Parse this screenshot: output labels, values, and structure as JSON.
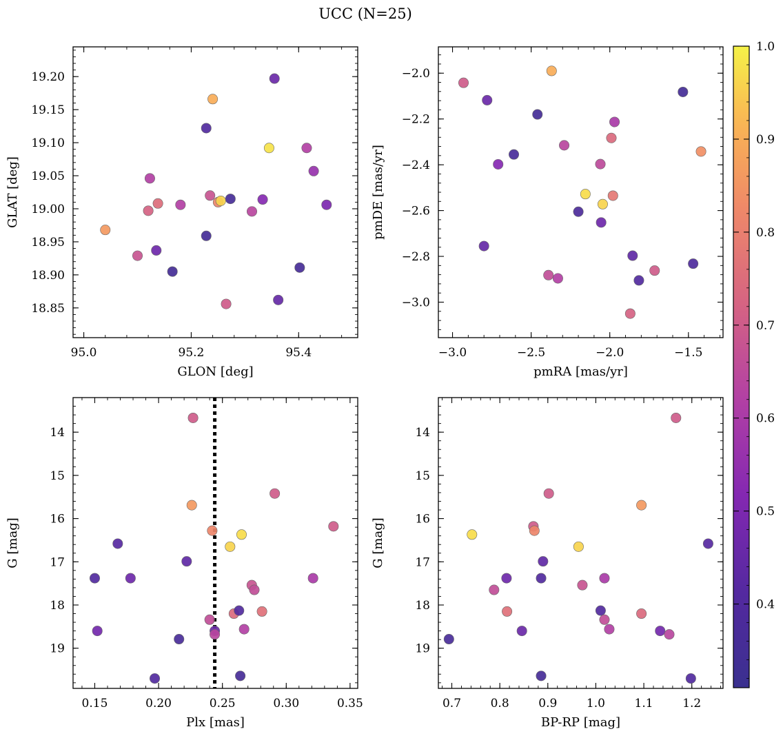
{
  "figure": {
    "title": "UCC (N=25)"
  },
  "colorbar": {
    "min": 0.31,
    "max": 1.0,
    "ticks": [
      0.4,
      0.5,
      0.6,
      0.7,
      0.8,
      0.9,
      1.0
    ],
    "tick_labels": [
      "0.4",
      "0.5",
      "0.6",
      "0.7",
      "0.8",
      "0.9",
      "1.0"
    ],
    "colormap": "plasma"
  },
  "chart_data": [
    {
      "type": "scatter",
      "xlabel": "GLON [deg]",
      "ylabel": "GLAT [deg]",
      "xlim": [
        94.98,
        95.51
      ],
      "ylim": [
        18.805,
        19.245
      ],
      "y_inverted": false,
      "xticks": [
        95.0,
        95.2,
        95.4
      ],
      "xtick_labels": [
        "95.0",
        "95.2",
        "95.4"
      ],
      "yticks": [
        18.85,
        18.9,
        18.95,
        19.0,
        19.05,
        19.1,
        19.15,
        19.2
      ],
      "ytick_labels": [
        "18.85",
        "18.90",
        "18.95",
        "19.00",
        "19.05",
        "19.10",
        "19.15",
        "19.20"
      ],
      "points": [
        {
          "x": 95.04,
          "y": 18.968,
          "c": 0.86
        },
        {
          "x": 95.1,
          "y": 18.929,
          "c": 0.68
        },
        {
          "x": 95.12,
          "y": 18.997,
          "c": 0.72
        },
        {
          "x": 95.123,
          "y": 19.046,
          "c": 0.62
        },
        {
          "x": 95.135,
          "y": 18.937,
          "c": 0.47
        },
        {
          "x": 95.138,
          "y": 19.008,
          "c": 0.75
        },
        {
          "x": 95.165,
          "y": 18.905,
          "c": 0.35
        },
        {
          "x": 95.18,
          "y": 19.006,
          "c": 0.62
        },
        {
          "x": 95.228,
          "y": 19.122,
          "c": 0.4
        },
        {
          "x": 95.228,
          "y": 18.959,
          "c": 0.35
        },
        {
          "x": 95.235,
          "y": 19.02,
          "c": 0.68
        },
        {
          "x": 95.24,
          "y": 19.166,
          "c": 0.9
        },
        {
          "x": 95.25,
          "y": 19.01,
          "c": 0.82
        },
        {
          "x": 95.255,
          "y": 19.012,
          "c": 0.96
        },
        {
          "x": 95.265,
          "y": 18.856,
          "c": 0.7
        },
        {
          "x": 95.273,
          "y": 19.015,
          "c": 0.36
        },
        {
          "x": 95.313,
          "y": 18.996,
          "c": 0.64
        },
        {
          "x": 95.333,
          "y": 19.014,
          "c": 0.52
        },
        {
          "x": 95.345,
          "y": 19.092,
          "c": 0.98
        },
        {
          "x": 95.355,
          "y": 19.197,
          "c": 0.46
        },
        {
          "x": 95.362,
          "y": 18.862,
          "c": 0.45
        },
        {
          "x": 95.402,
          "y": 18.911,
          "c": 0.36
        },
        {
          "x": 95.415,
          "y": 19.092,
          "c": 0.62
        },
        {
          "x": 95.428,
          "y": 19.057,
          "c": 0.56
        },
        {
          "x": 95.452,
          "y": 19.006,
          "c": 0.5
        }
      ]
    },
    {
      "type": "scatter",
      "xlabel": "pmRA [mas/yr]",
      "ylabel": "pmDE [mas/yr]",
      "xlim": [
        -3.09,
        -1.28
      ],
      "ylim": [
        -3.155,
        -1.885
      ],
      "y_inverted": false,
      "xticks": [
        -3.0,
        -2.5,
        -2.0,
        -1.5
      ],
      "xtick_labels": [
        "−3.0",
        "−2.5",
        "−2.0",
        "−1.5"
      ],
      "yticks": [
        -3.0,
        -2.8,
        -2.6,
        -2.4,
        -2.2,
        -2.0
      ],
      "ytick_labels": [
        "−3.0",
        "−2.8",
        "−2.6",
        "−2.4",
        "−2.2",
        "−2.0"
      ],
      "points": [
        {
          "x": -2.93,
          "y": -2.042,
          "c": 0.7
        },
        {
          "x": -2.78,
          "y": -2.118,
          "c": 0.46
        },
        {
          "x": -2.8,
          "y": -2.755,
          "c": 0.45
        },
        {
          "x": -2.71,
          "y": -2.398,
          "c": 0.52
        },
        {
          "x": -2.61,
          "y": -2.355,
          "c": 0.37
        },
        {
          "x": -2.46,
          "y": -2.18,
          "c": 0.35
        },
        {
          "x": -2.39,
          "y": -2.882,
          "c": 0.66
        },
        {
          "x": -2.37,
          "y": -1.99,
          "c": 0.9
        },
        {
          "x": -2.33,
          "y": -2.896,
          "c": 0.62
        },
        {
          "x": -2.29,
          "y": -2.315,
          "c": 0.64
        },
        {
          "x": -2.2,
          "y": -2.605,
          "c": 0.38
        },
        {
          "x": -2.155,
          "y": -2.528,
          "c": 0.97
        },
        {
          "x": -2.06,
          "y": -2.397,
          "c": 0.65
        },
        {
          "x": -2.055,
          "y": -2.652,
          "c": 0.47
        },
        {
          "x": -2.045,
          "y": -2.572,
          "c": 0.96
        },
        {
          "x": -1.99,
          "y": -2.283,
          "c": 0.74
        },
        {
          "x": -1.98,
          "y": -2.535,
          "c": 0.78
        },
        {
          "x": -1.97,
          "y": -2.213,
          "c": 0.6
        },
        {
          "x": -1.87,
          "y": -3.05,
          "c": 0.72
        },
        {
          "x": -1.855,
          "y": -2.797,
          "c": 0.44
        },
        {
          "x": -1.815,
          "y": -2.905,
          "c": 0.4
        },
        {
          "x": -1.715,
          "y": -2.862,
          "c": 0.7
        },
        {
          "x": -1.535,
          "y": -2.082,
          "c": 0.35
        },
        {
          "x": -1.47,
          "y": -2.832,
          "c": 0.39
        },
        {
          "x": -1.42,
          "y": -2.342,
          "c": 0.84
        }
      ]
    },
    {
      "type": "scatter",
      "xlabel": "Plx [mas]",
      "ylabel": "G [mag]",
      "xlim": [
        0.133,
        0.356
      ],
      "ylim": [
        13.2,
        19.93
      ],
      "y_inverted": true,
      "xticks": [
        0.15,
        0.2,
        0.25,
        0.3,
        0.35
      ],
      "xtick_labels": [
        "0.15",
        "0.20",
        "0.25",
        "0.30",
        "0.35"
      ],
      "yticks": [
        14,
        15,
        16,
        17,
        18,
        19
      ],
      "ytick_labels": [
        "14",
        "15",
        "16",
        "17",
        "18",
        "19"
      ],
      "vline": {
        "x": 0.244,
        "style": "dotted",
        "color": "#000000"
      },
      "points": [
        {
          "x": 0.15,
          "y": 17.38,
          "c": 0.4
        },
        {
          "x": 0.152,
          "y": 18.6,
          "c": 0.48
        },
        {
          "x": 0.168,
          "y": 16.58,
          "c": 0.42
        },
        {
          "x": 0.178,
          "y": 17.38,
          "c": 0.47
        },
        {
          "x": 0.197,
          "y": 19.7,
          "c": 0.4
        },
        {
          "x": 0.216,
          "y": 18.79,
          "c": 0.37
        },
        {
          "x": 0.222,
          "y": 16.99,
          "c": 0.44
        },
        {
          "x": 0.226,
          "y": 15.69,
          "c": 0.86
        },
        {
          "x": 0.227,
          "y": 13.67,
          "c": 0.7
        },
        {
          "x": 0.24,
          "y": 18.34,
          "c": 0.66
        },
        {
          "x": 0.242,
          "y": 16.28,
          "c": 0.82
        },
        {
          "x": 0.244,
          "y": 18.6,
          "c": 0.46
        },
        {
          "x": 0.244,
          "y": 18.68,
          "c": 0.64
        },
        {
          "x": 0.256,
          "y": 16.65,
          "c": 0.96
        },
        {
          "x": 0.259,
          "y": 18.2,
          "c": 0.74
        },
        {
          "x": 0.263,
          "y": 18.13,
          "c": 0.4
        },
        {
          "x": 0.264,
          "y": 19.64,
          "c": 0.36
        },
        {
          "x": 0.265,
          "y": 16.37,
          "c": 0.97
        },
        {
          "x": 0.267,
          "y": 18.56,
          "c": 0.62
        },
        {
          "x": 0.273,
          "y": 17.54,
          "c": 0.68
        },
        {
          "x": 0.275,
          "y": 17.65,
          "c": 0.66
        },
        {
          "x": 0.281,
          "y": 18.15,
          "c": 0.76
        },
        {
          "x": 0.291,
          "y": 15.42,
          "c": 0.7
        },
        {
          "x": 0.321,
          "y": 17.38,
          "c": 0.6
        },
        {
          "x": 0.337,
          "y": 16.18,
          "c": 0.7
        }
      ]
    },
    {
      "type": "scatter",
      "xlabel": "BP-RP [mag]",
      "ylabel": "G [mag]",
      "xlim": [
        0.672,
        1.265
      ],
      "ylim": [
        13.2,
        19.93
      ],
      "y_inverted": true,
      "xticks": [
        0.7,
        0.8,
        0.9,
        1.0,
        1.1,
        1.2
      ],
      "xtick_labels": [
        "0.7",
        "0.8",
        "0.9",
        "1.0",
        "1.1",
        "1.2"
      ],
      "yticks": [
        14,
        15,
        16,
        17,
        18,
        19
      ],
      "ytick_labels": [
        "14",
        "15",
        "16",
        "17",
        "18",
        "19"
      ],
      "points": [
        {
          "x": 0.694,
          "y": 18.79,
          "c": 0.37
        },
        {
          "x": 0.742,
          "y": 16.37,
          "c": 0.97
        },
        {
          "x": 0.788,
          "y": 17.65,
          "c": 0.66
        },
        {
          "x": 0.814,
          "y": 17.38,
          "c": 0.47
        },
        {
          "x": 0.815,
          "y": 18.15,
          "c": 0.76
        },
        {
          "x": 0.846,
          "y": 18.6,
          "c": 0.46
        },
        {
          "x": 0.87,
          "y": 16.18,
          "c": 0.7
        },
        {
          "x": 0.872,
          "y": 16.28,
          "c": 0.82
        },
        {
          "x": 0.886,
          "y": 17.38,
          "c": 0.4
        },
        {
          "x": 0.886,
          "y": 19.64,
          "c": 0.36
        },
        {
          "x": 0.89,
          "y": 16.99,
          "c": 0.44
        },
        {
          "x": 0.902,
          "y": 15.42,
          "c": 0.7
        },
        {
          "x": 0.964,
          "y": 16.65,
          "c": 0.96
        },
        {
          "x": 0.972,
          "y": 17.54,
          "c": 0.68
        },
        {
          "x": 1.01,
          "y": 18.13,
          "c": 0.4
        },
        {
          "x": 1.018,
          "y": 17.38,
          "c": 0.6
        },
        {
          "x": 1.018,
          "y": 18.34,
          "c": 0.66
        },
        {
          "x": 1.028,
          "y": 18.56,
          "c": 0.62
        },
        {
          "x": 1.095,
          "y": 15.69,
          "c": 0.86
        },
        {
          "x": 1.095,
          "y": 18.2,
          "c": 0.74
        },
        {
          "x": 1.134,
          "y": 18.6,
          "c": 0.48
        },
        {
          "x": 1.153,
          "y": 18.68,
          "c": 0.64
        },
        {
          "x": 1.167,
          "y": 13.67,
          "c": 0.7
        },
        {
          "x": 1.198,
          "y": 19.7,
          "c": 0.4
        },
        {
          "x": 1.234,
          "y": 16.58,
          "c": 0.42
        }
      ]
    }
  ]
}
